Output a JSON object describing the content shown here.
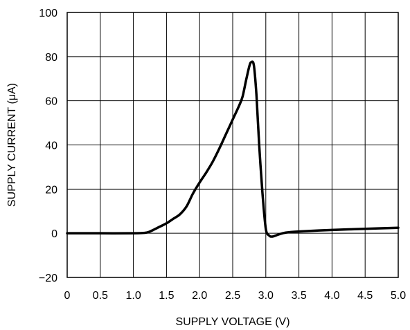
{
  "chart_data": {
    "type": "line",
    "title": "",
    "xlabel": "SUPPLY VOLTAGE (V)",
    "ylabel": "SUPPLY CURRENT (μA)",
    "xlim": [
      0,
      5
    ],
    "ylim": [
      -20,
      100
    ],
    "x_ticks": [
      0,
      0.5,
      1.0,
      1.5,
      2.0,
      2.5,
      3.0,
      3.5,
      4.0,
      4.5,
      5.0
    ],
    "x_tick_labels": [
      "0",
      "0.5",
      "1.0",
      "1.5",
      "2.0",
      "2.5",
      "3.0",
      "3.5",
      "4.0",
      "4.5",
      "5.0"
    ],
    "y_ticks": [
      -20,
      0,
      20,
      40,
      60,
      80,
      100
    ],
    "y_tick_labels": [
      "−20",
      "0",
      "20",
      "40",
      "60",
      "80",
      "100"
    ],
    "grid": true,
    "series": [
      {
        "x": [
          0,
          0.5,
          1.0,
          1.2,
          1.3,
          1.4,
          1.5,
          1.6,
          1.7,
          1.8,
          1.9,
          2.0,
          2.1,
          2.2,
          2.3,
          2.4,
          2.5,
          2.6,
          2.65,
          2.7,
          2.75,
          2.78,
          2.82,
          2.86,
          2.9,
          2.95,
          3.0,
          3.05,
          3.1,
          3.2,
          3.3,
          3.5,
          4.0,
          4.5,
          5.0
        ],
        "values": [
          0,
          0,
          0,
          0.3,
          1.5,
          3,
          4.5,
          6.5,
          8.5,
          12,
          18,
          23,
          27.5,
          32.5,
          38.5,
          45,
          51.5,
          58,
          62,
          69,
          75.5,
          77.5,
          76,
          62,
          40,
          18,
          2,
          -1,
          -1.5,
          -0.5,
          0.3,
          0.8,
          1.5,
          2.0,
          2.5
        ]
      }
    ],
    "colors": {
      "line": "#000000",
      "grid": "#000000",
      "background": "#ffffff"
    }
  }
}
